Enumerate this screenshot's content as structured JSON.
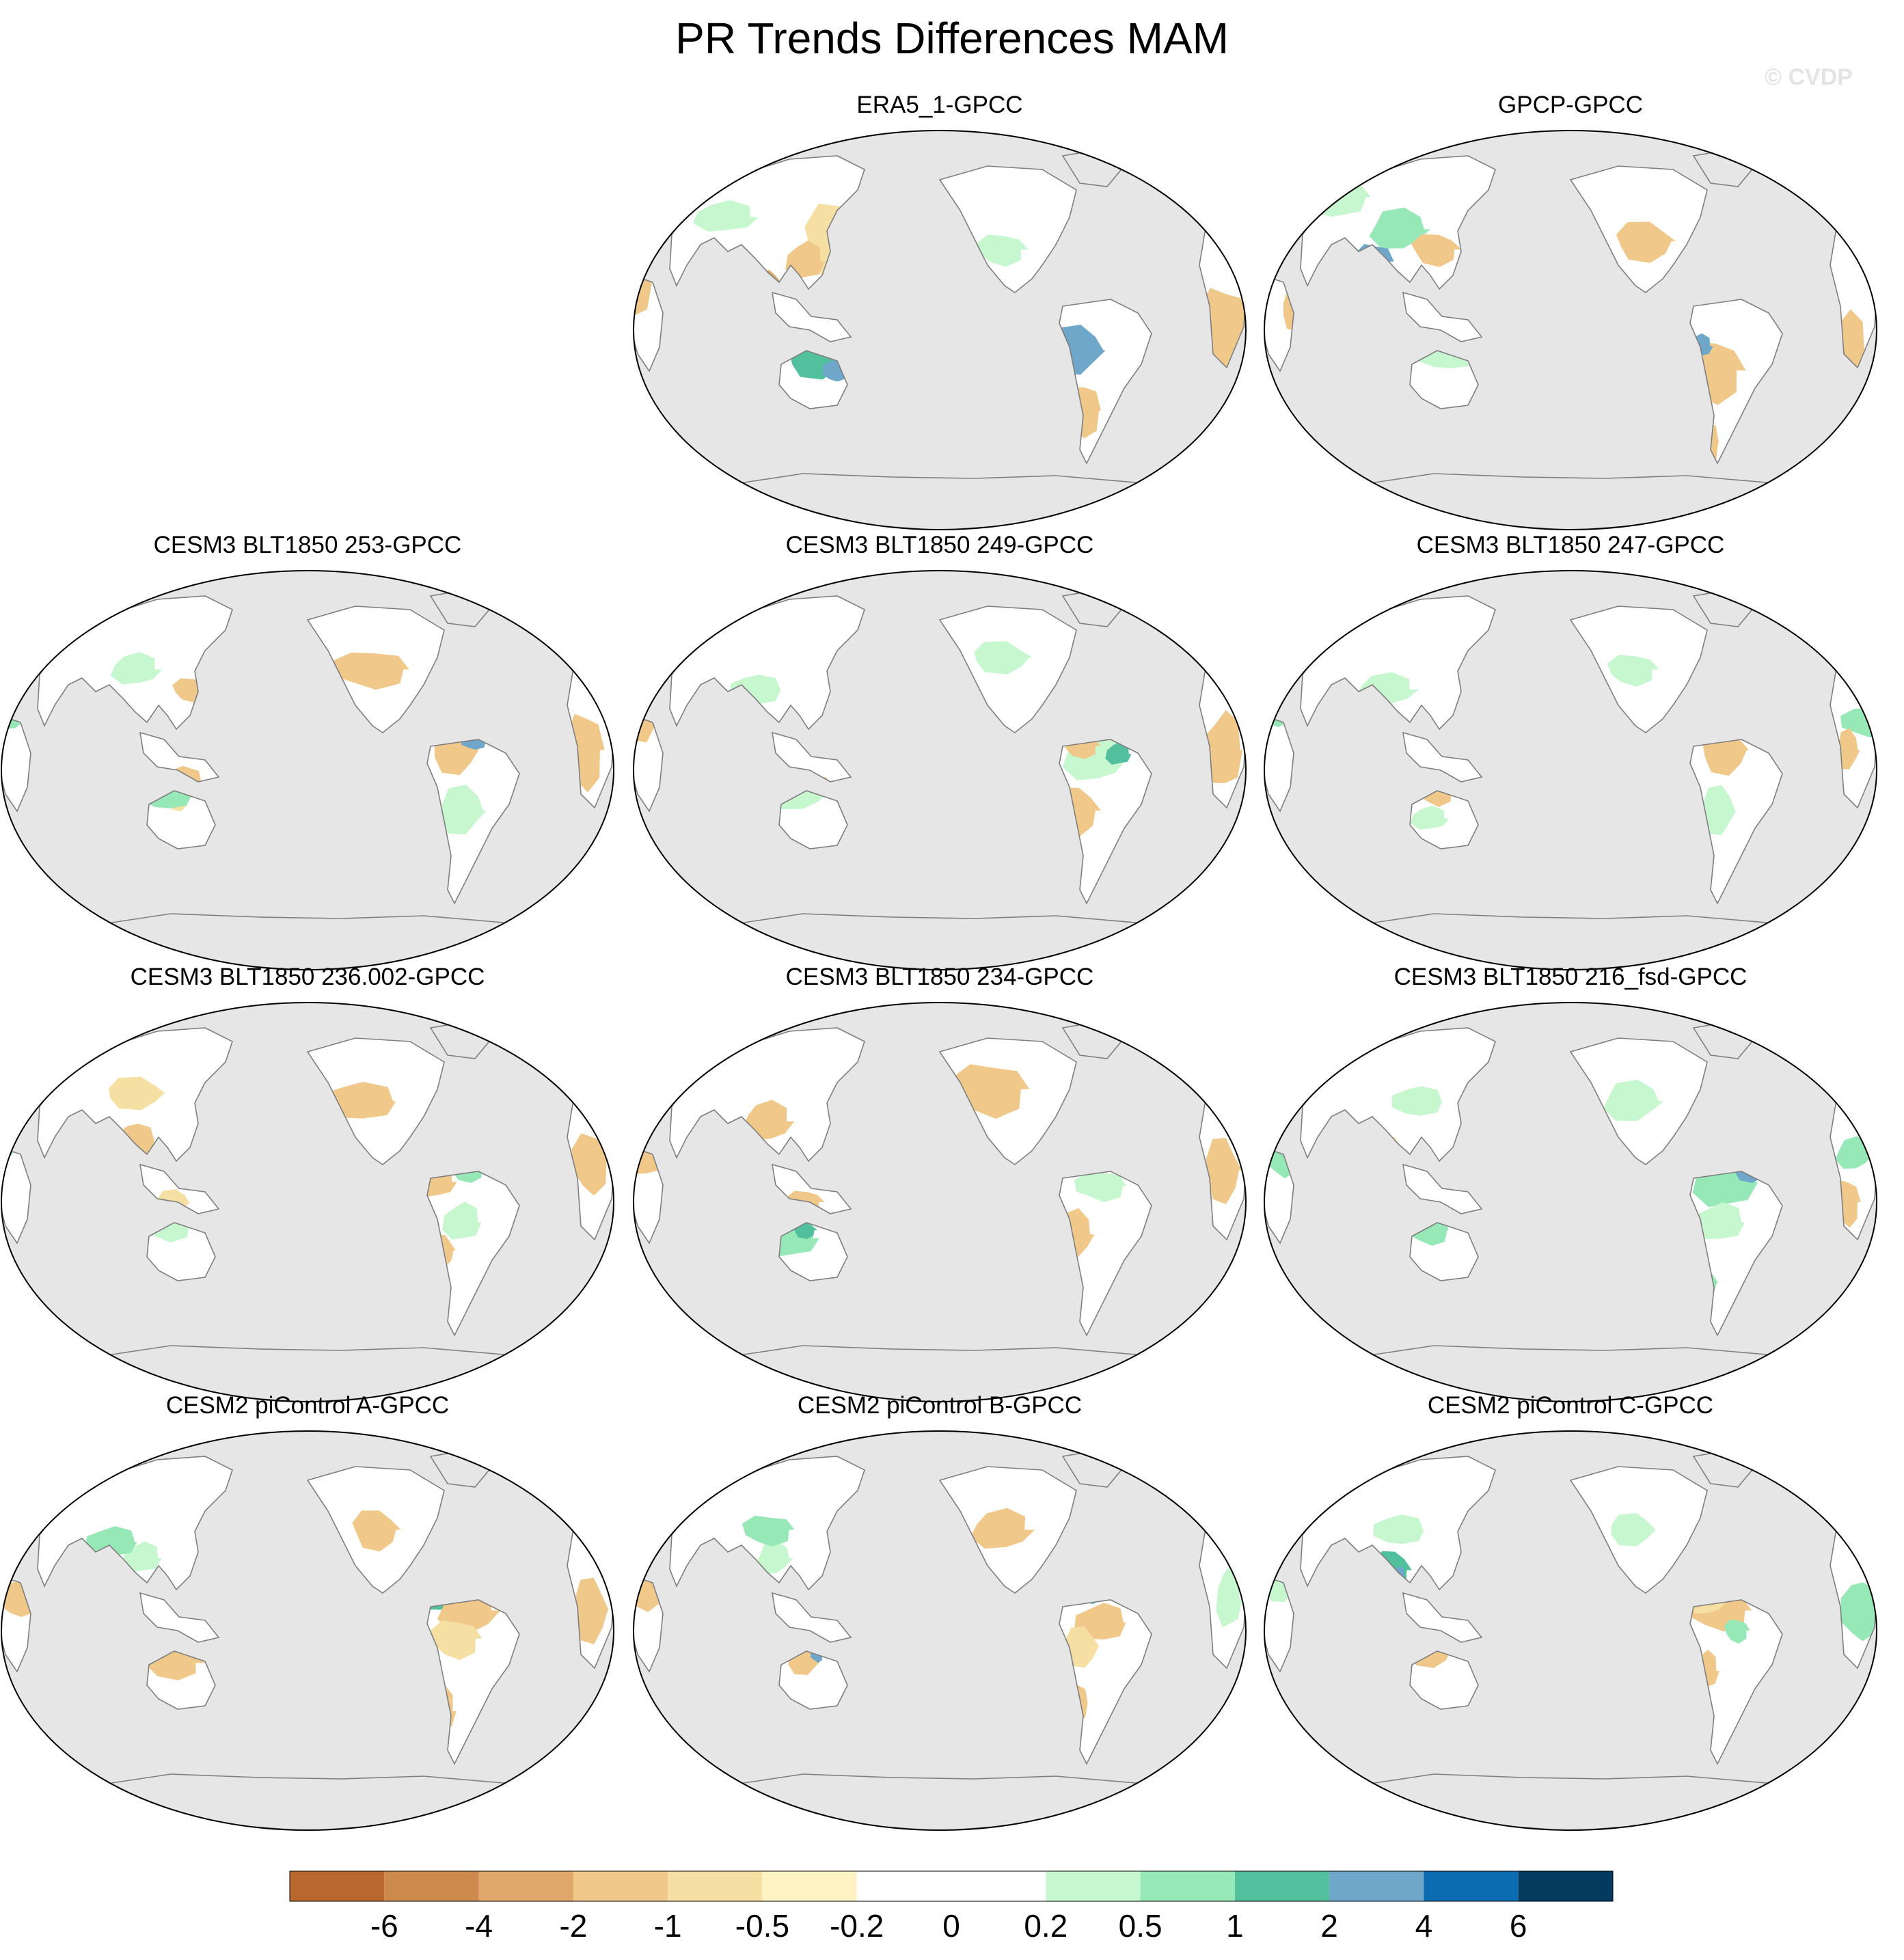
{
  "title": "PR Trends Differences MAM",
  "watermark": "© CVDP",
  "ocean_color": "#e6e6e6",
  "coast_color": "#7f7f7f",
  "panels": [
    {
      "title": "ERA5_1-GPCC",
      "blobs": [
        [
          0.33,
          0.28,
          0.05,
          0.1,
          4
        ],
        [
          0.28,
          0.33,
          0.03,
          0.05,
          3
        ],
        [
          0.22,
          0.38,
          0.02,
          0.03,
          2
        ],
        [
          0.0,
          0.38,
          0.03,
          0.1,
          3
        ],
        [
          0.3,
          0.57,
          0.05,
          0.05,
          10
        ],
        [
          0.33,
          0.6,
          0.02,
          0.03,
          11
        ],
        [
          0.72,
          0.55,
          0.05,
          0.06,
          11
        ],
        [
          0.73,
          0.7,
          0.03,
          0.07,
          3
        ],
        [
          0.7,
          0.78,
          0.02,
          0.07,
          4
        ],
        [
          0.96,
          0.5,
          0.04,
          0.12,
          3
        ],
        [
          0.27,
          0.78,
          0.05,
          0.05,
          8
        ],
        [
          0.6,
          0.3,
          0.04,
          0.04,
          8
        ],
        [
          0.15,
          0.22,
          0.05,
          0.04,
          8
        ]
      ]
    },
    {
      "title": "GPCP-GPCC",
      "blobs": [
        [
          0.1,
          0.17,
          0.07,
          0.05,
          8
        ],
        [
          0.22,
          0.25,
          0.05,
          0.05,
          9
        ],
        [
          0.18,
          0.33,
          0.03,
          0.05,
          11
        ],
        [
          0.21,
          0.38,
          0.02,
          0.03,
          11
        ],
        [
          0.73,
          0.6,
          0.05,
          0.08,
          3
        ],
        [
          0.71,
          0.54,
          0.02,
          0.03,
          11
        ],
        [
          0.28,
          0.3,
          0.04,
          0.04,
          3
        ],
        [
          0.95,
          0.55,
          0.03,
          0.1,
          3
        ],
        [
          0.62,
          0.28,
          0.05,
          0.05,
          3
        ],
        [
          0.3,
          0.56,
          0.05,
          0.04,
          8
        ],
        [
          0.05,
          0.45,
          0.02,
          0.05,
          3
        ],
        [
          0.72,
          0.78,
          0.02,
          0.06,
          3
        ]
      ]
    },
    {
      "title": "CESM3 BLT1850 253-GPCC",
      "blobs": [
        [
          0.29,
          0.53,
          0.04,
          0.04,
          3
        ],
        [
          0.29,
          0.57,
          0.02,
          0.03,
          4
        ],
        [
          0.27,
          0.56,
          0.04,
          0.04,
          9
        ],
        [
          0.74,
          0.45,
          0.04,
          0.06,
          3
        ],
        [
          0.77,
          0.43,
          0.02,
          0.02,
          11
        ],
        [
          0.75,
          0.6,
          0.04,
          0.06,
          8
        ],
        [
          0.6,
          0.25,
          0.06,
          0.05,
          3
        ],
        [
          0.02,
          0.35,
          0.03,
          0.05,
          9
        ],
        [
          0.95,
          0.45,
          0.03,
          0.1,
          3
        ],
        [
          0.22,
          0.25,
          0.04,
          0.04,
          8
        ],
        [
          0.31,
          0.3,
          0.03,
          0.03,
          3
        ],
        [
          0.7,
          0.68,
          0.02,
          0.05,
          8
        ]
      ]
    },
    {
      "title": "CESM3 BLT1850 249-GPCC",
      "blobs": [
        [
          0.27,
          0.55,
          0.05,
          0.05,
          8
        ],
        [
          0.3,
          0.53,
          0.02,
          0.02,
          3
        ],
        [
          0.75,
          0.47,
          0.05,
          0.06,
          8
        ],
        [
          0.73,
          0.44,
          0.03,
          0.03,
          3
        ],
        [
          0.79,
          0.46,
          0.02,
          0.03,
          10
        ],
        [
          0.72,
          0.6,
          0.04,
          0.06,
          3
        ],
        [
          0.96,
          0.45,
          0.03,
          0.1,
          3
        ],
        [
          0.6,
          0.22,
          0.05,
          0.04,
          8
        ],
        [
          0.2,
          0.3,
          0.04,
          0.04,
          8
        ],
        [
          0.02,
          0.38,
          0.02,
          0.05,
          3
        ],
        [
          0.7,
          0.75,
          0.02,
          0.05,
          8
        ]
      ]
    },
    {
      "title": "CESM3 BLT1850 247-GPCC",
      "blobs": [
        [
          0.75,
          0.45,
          0.04,
          0.06,
          3
        ],
        [
          0.72,
          0.42,
          0.02,
          0.02,
          3
        ],
        [
          0.74,
          0.6,
          0.03,
          0.06,
          8
        ],
        [
          0.98,
          0.38,
          0.04,
          0.04,
          9
        ],
        [
          0.95,
          0.45,
          0.02,
          0.05,
          3
        ],
        [
          0.28,
          0.55,
          0.03,
          0.04,
          3
        ],
        [
          0.2,
          0.3,
          0.05,
          0.04,
          8
        ],
        [
          0.6,
          0.25,
          0.04,
          0.04,
          8
        ],
        [
          0.27,
          0.62,
          0.03,
          0.03,
          8
        ],
        [
          0.02,
          0.35,
          0.03,
          0.04,
          9
        ]
      ]
    },
    {
      "title": "CESM3 BLT1850 236.002-GPCC",
      "blobs": [
        [
          0.72,
          0.38,
          0.04,
          0.05,
          10
        ],
        [
          0.71,
          0.45,
          0.03,
          0.04,
          3
        ],
        [
          0.76,
          0.42,
          0.03,
          0.03,
          9
        ],
        [
          0.75,
          0.55,
          0.03,
          0.05,
          8
        ],
        [
          0.72,
          0.62,
          0.02,
          0.04,
          3
        ],
        [
          0.58,
          0.25,
          0.06,
          0.05,
          3
        ],
        [
          0.22,
          0.23,
          0.05,
          0.04,
          4
        ],
        [
          0.22,
          0.35,
          0.03,
          0.05,
          3
        ],
        [
          0.28,
          0.5,
          0.03,
          0.03,
          4
        ],
        [
          0.27,
          0.56,
          0.04,
          0.04,
          8
        ],
        [
          0.0,
          0.35,
          0.03,
          0.06,
          9
        ],
        [
          0.96,
          0.4,
          0.03,
          0.08,
          3
        ]
      ]
    },
    {
      "title": "CESM3 BLT1850 234-GPCC",
      "blobs": [
        [
          0.72,
          0.38,
          0.05,
          0.05,
          10
        ],
        [
          0.74,
          0.4,
          0.02,
          0.02,
          12
        ],
        [
          0.76,
          0.46,
          0.04,
          0.04,
          8
        ],
        [
          0.72,
          0.58,
          0.03,
          0.06,
          3
        ],
        [
          0.58,
          0.22,
          0.06,
          0.07,
          3
        ],
        [
          0.22,
          0.3,
          0.04,
          0.05,
          3
        ],
        [
          0.28,
          0.5,
          0.03,
          0.03,
          3
        ],
        [
          0.26,
          0.59,
          0.04,
          0.05,
          9
        ],
        [
          0.28,
          0.57,
          0.02,
          0.02,
          10
        ],
        [
          0.02,
          0.38,
          0.03,
          0.06,
          3
        ],
        [
          0.96,
          0.42,
          0.03,
          0.08,
          3
        ]
      ]
    },
    {
      "title": "CESM3 BLT1850 216_fsd-GPCC",
      "blobs": [
        [
          0.75,
          0.45,
          0.05,
          0.07,
          9
        ],
        [
          0.79,
          0.42,
          0.03,
          0.03,
          11
        ],
        [
          0.74,
          0.55,
          0.04,
          0.05,
          8
        ],
        [
          0.72,
          0.7,
          0.02,
          0.04,
          9
        ],
        [
          0.25,
          0.25,
          0.04,
          0.04,
          8
        ],
        [
          0.21,
          0.38,
          0.02,
          0.04,
          4
        ],
        [
          0.27,
          0.57,
          0.03,
          0.04,
          9
        ],
        [
          0.6,
          0.25,
          0.05,
          0.05,
          8
        ],
        [
          0.03,
          0.38,
          0.03,
          0.06,
          9
        ],
        [
          0.96,
          0.38,
          0.03,
          0.04,
          9
        ],
        [
          0.95,
          0.5,
          0.02,
          0.06,
          3
        ]
      ]
    },
    {
      "title": "CESM2 piControl A-GPCC",
      "blobs": [
        [
          0.72,
          0.4,
          0.04,
          0.05,
          10
        ],
        [
          0.73,
          0.41,
          0.02,
          0.02,
          11
        ],
        [
          0.76,
          0.45,
          0.05,
          0.06,
          3
        ],
        [
          0.74,
          0.52,
          0.04,
          0.05,
          4
        ],
        [
          0.72,
          0.7,
          0.02,
          0.06,
          3
        ],
        [
          0.28,
          0.58,
          0.05,
          0.04,
          3
        ],
        [
          0.23,
          0.32,
          0.03,
          0.04,
          8
        ],
        [
          0.61,
          0.25,
          0.04,
          0.05,
          3
        ],
        [
          0.18,
          0.28,
          0.04,
          0.04,
          9
        ],
        [
          0.96,
          0.45,
          0.03,
          0.08,
          3
        ],
        [
          0.03,
          0.42,
          0.03,
          0.05,
          3
        ]
      ]
    },
    {
      "title": "CESM2 piControl B-GPCC",
      "blobs": [
        [
          0.74,
          0.38,
          0.05,
          0.05,
          10
        ],
        [
          0.76,
          0.48,
          0.04,
          0.05,
          3
        ],
        [
          0.73,
          0.54,
          0.03,
          0.05,
          4
        ],
        [
          0.72,
          0.68,
          0.02,
          0.05,
          3
        ],
        [
          0.28,
          0.57,
          0.03,
          0.04,
          3
        ],
        [
          0.3,
          0.56,
          0.01,
          0.02,
          11
        ],
        [
          0.23,
          0.32,
          0.03,
          0.04,
          8
        ],
        [
          0.22,
          0.25,
          0.04,
          0.04,
          9
        ],
        [
          0.6,
          0.25,
          0.05,
          0.05,
          3
        ],
        [
          0.02,
          0.4,
          0.03,
          0.05,
          3
        ],
        [
          0.97,
          0.42,
          0.02,
          0.08,
          8
        ]
      ]
    },
    {
      "title": "CESM2 piControl C-GPCC",
      "blobs": [
        [
          0.74,
          0.45,
          0.05,
          0.05,
          3
        ],
        [
          0.72,
          0.43,
          0.03,
          0.03,
          4
        ],
        [
          0.77,
          0.5,
          0.02,
          0.03,
          9
        ],
        [
          0.72,
          0.6,
          0.02,
          0.05,
          3
        ],
        [
          0.21,
          0.35,
          0.03,
          0.05,
          10
        ],
        [
          0.22,
          0.36,
          0.01,
          0.02,
          11
        ],
        [
          0.27,
          0.55,
          0.04,
          0.04,
          3
        ],
        [
          0.22,
          0.25,
          0.04,
          0.04,
          8
        ],
        [
          0.6,
          0.25,
          0.04,
          0.04,
          8
        ],
        [
          0.97,
          0.45,
          0.03,
          0.08,
          9
        ],
        [
          0.03,
          0.38,
          0.03,
          0.05,
          8
        ]
      ]
    }
  ],
  "colorbar": {
    "colors": [
      "#b8682e",
      "#cc8b4c",
      "#e0a86a",
      "#f0c98a",
      "#f5dfa3",
      "#fff3c4",
      "#ffffff",
      "#ffffff",
      "#c6f7cf",
      "#96e9b6",
      "#52bf9d",
      "#6ea7c9",
      "#0c6cb1",
      "#043a5e"
    ],
    "labels": [
      "-6",
      "-4",
      "-2",
      "-1",
      "-0.5",
      "-0.2",
      "0",
      "0.2",
      "0.5",
      "1",
      "2",
      "4",
      "6"
    ]
  }
}
